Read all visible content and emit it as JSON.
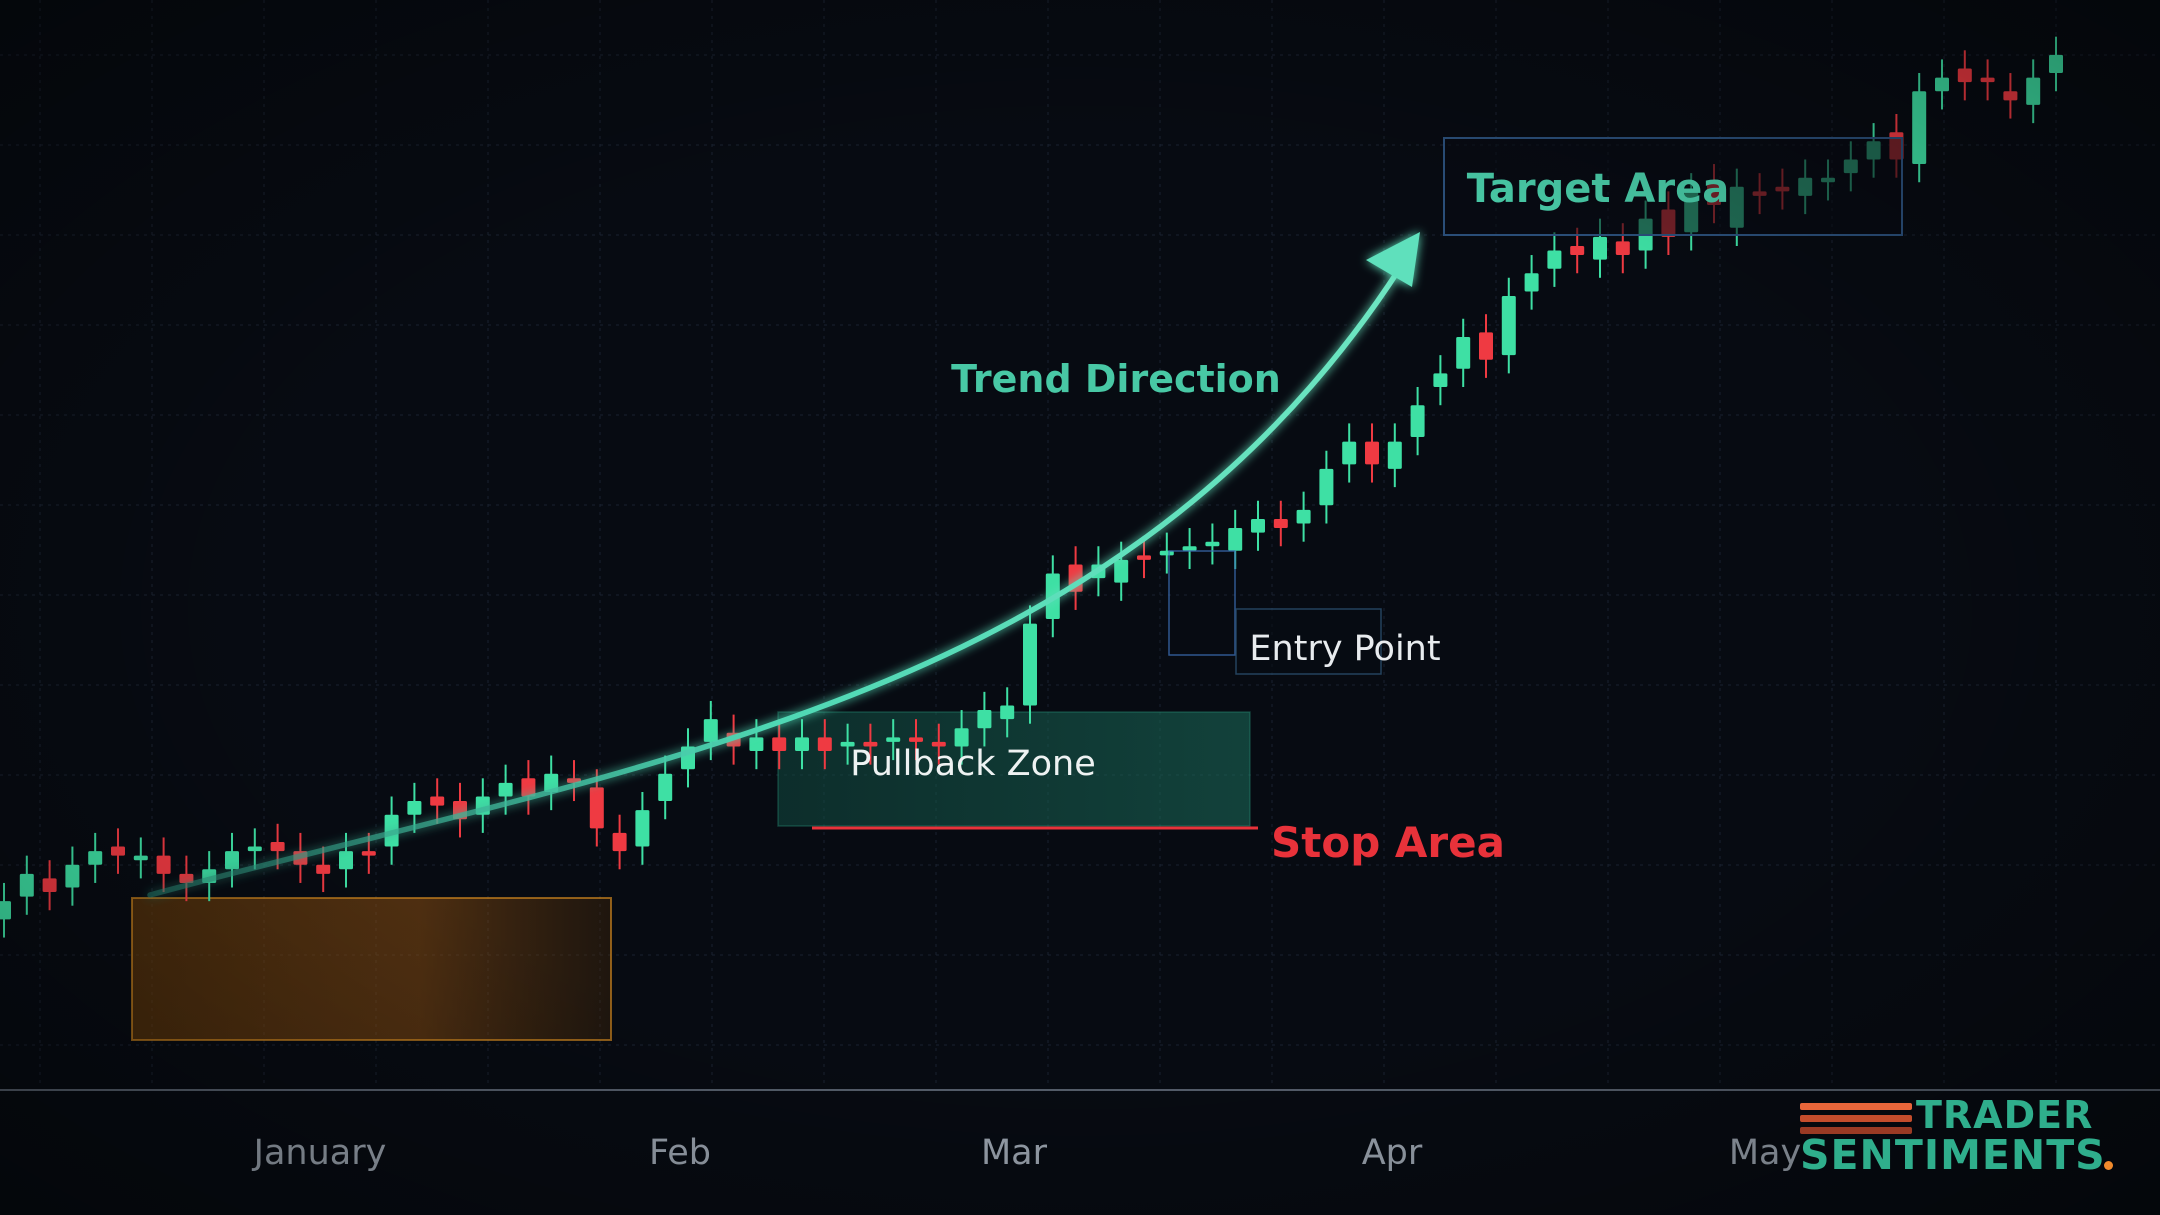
{
  "chart_data": {
    "type": "candlestick",
    "title": "",
    "xlabel": "",
    "ylabel": "",
    "x_ticks": [
      "January",
      "Feb",
      "Mar",
      "Apr",
      "May"
    ],
    "grid": true,
    "legend": "none",
    "colors": {
      "background": "#070b12",
      "up": "#3ee0a4",
      "down": "#ef3a42",
      "trend_arrow": "#4fd8b4",
      "stop_line": "#e8323a",
      "annotation_text": "#48c8a5",
      "consolidation_fill": "#c87818",
      "pullback_fill": "#1f8a72"
    },
    "candles_relative_price": [
      {
        "o": 43,
        "c": 47
      },
      {
        "o": 48,
        "c": 53
      },
      {
        "o": 52,
        "c": 49
      },
      {
        "o": 50,
        "c": 55
      },
      {
        "o": 55,
        "c": 58
      },
      {
        "o": 59,
        "c": 57
      },
      {
        "o": 56,
        "c": 57
      },
      {
        "o": 57,
        "c": 53
      },
      {
        "o": 53,
        "c": 51
      },
      {
        "o": 51,
        "c": 54
      },
      {
        "o": 54,
        "c": 58
      },
      {
        "o": 58,
        "c": 59
      },
      {
        "o": 60,
        "c": 58
      },
      {
        "o": 58,
        "c": 55
      },
      {
        "o": 55,
        "c": 53
      },
      {
        "o": 54,
        "c": 58
      },
      {
        "o": 58,
        "c": 57
      },
      {
        "o": 59,
        "c": 66
      },
      {
        "o": 66,
        "c": 69
      },
      {
        "o": 70,
        "c": 68
      },
      {
        "o": 69,
        "c": 65
      },
      {
        "o": 66,
        "c": 70
      },
      {
        "o": 70,
        "c": 73
      },
      {
        "o": 74,
        "c": 70
      },
      {
        "o": 71,
        "c": 75
      },
      {
        "o": 74,
        "c": 73
      },
      {
        "o": 72,
        "c": 63
      },
      {
        "o": 62,
        "c": 58
      },
      {
        "o": 59,
        "c": 67
      },
      {
        "o": 69,
        "c": 75
      },
      {
        "o": 76,
        "c": 81
      },
      {
        "o": 82,
        "c": 87
      },
      {
        "o": 84,
        "c": 81
      },
      {
        "o": 80,
        "c": 83
      },
      {
        "o": 83,
        "c": 80
      },
      {
        "o": 80,
        "c": 83
      },
      {
        "o": 83,
        "c": 80
      },
      {
        "o": 81,
        "c": 82
      },
      {
        "o": 82,
        "c": 81
      },
      {
        "o": 82,
        "c": 83
      },
      {
        "o": 83,
        "c": 82
      },
      {
        "o": 82,
        "c": 81
      },
      {
        "o": 81,
        "c": 85
      },
      {
        "o": 85,
        "c": 89
      },
      {
        "o": 87,
        "c": 90
      },
      {
        "o": 90,
        "c": 108
      },
      {
        "o": 109,
        "c": 119
      },
      {
        "o": 121,
        "c": 115
      },
      {
        "o": 118,
        "c": 121
      },
      {
        "o": 117,
        "c": 122
      },
      {
        "o": 123,
        "c": 122
      },
      {
        "o": 123,
        "c": 124
      },
      {
        "o": 124,
        "c": 125
      },
      {
        "o": 125,
        "c": 126
      },
      {
        "o": 124,
        "c": 129
      },
      {
        "o": 128,
        "c": 131
      },
      {
        "o": 131,
        "c": 129
      },
      {
        "o": 130,
        "c": 133
      },
      {
        "o": 134,
        "c": 142
      },
      {
        "o": 143,
        "c": 148
      },
      {
        "o": 148,
        "c": 143
      },
      {
        "o": 142,
        "c": 148
      },
      {
        "o": 149,
        "c": 156
      },
      {
        "o": 160,
        "c": 163
      },
      {
        "o": 164,
        "c": 171
      },
      {
        "o": 172,
        "c": 166
      },
      {
        "o": 167,
        "c": 180
      },
      {
        "o": 181,
        "c": 185
      },
      {
        "o": 186,
        "c": 190
      },
      {
        "o": 191,
        "c": 189
      },
      {
        "o": 188,
        "c": 193
      },
      {
        "o": 192,
        "c": 189
      },
      {
        "o": 190,
        "c": 197
      },
      {
        "o": 199,
        "c": 193
      },
      {
        "o": 194,
        "c": 203
      },
      {
        "o": 205,
        "c": 200
      },
      {
        "o": 195,
        "c": 204
      },
      {
        "o": 203,
        "c": 202
      },
      {
        "o": 204,
        "c": 203
      },
      {
        "o": 202,
        "c": 206
      },
      {
        "o": 205,
        "c": 206
      },
      {
        "o": 207,
        "c": 210
      },
      {
        "o": 210,
        "c": 214
      },
      {
        "o": 216,
        "c": 210
      },
      {
        "o": 209,
        "c": 225
      },
      {
        "o": 225,
        "c": 228
      },
      {
        "o": 230,
        "c": 227
      },
      {
        "o": 228,
        "c": 227
      },
      {
        "o": 225,
        "c": 223
      },
      {
        "o": 222,
        "c": 228
      },
      {
        "o": 229,
        "c": 233
      }
    ]
  },
  "annotations": {
    "trend": "Trend Direction",
    "target": "Target Area",
    "entry": "Entry Point",
    "pullback": "Pullback Zone",
    "stop": "Stop Area"
  },
  "logo": {
    "line1": "TRADER",
    "line2": "SENTIMENTS",
    "bar_colors": [
      "#e8663a",
      "#c44d2c",
      "#9a3a24"
    ],
    "accent": "#f08a2c",
    "text_color": "#2fae8c"
  }
}
